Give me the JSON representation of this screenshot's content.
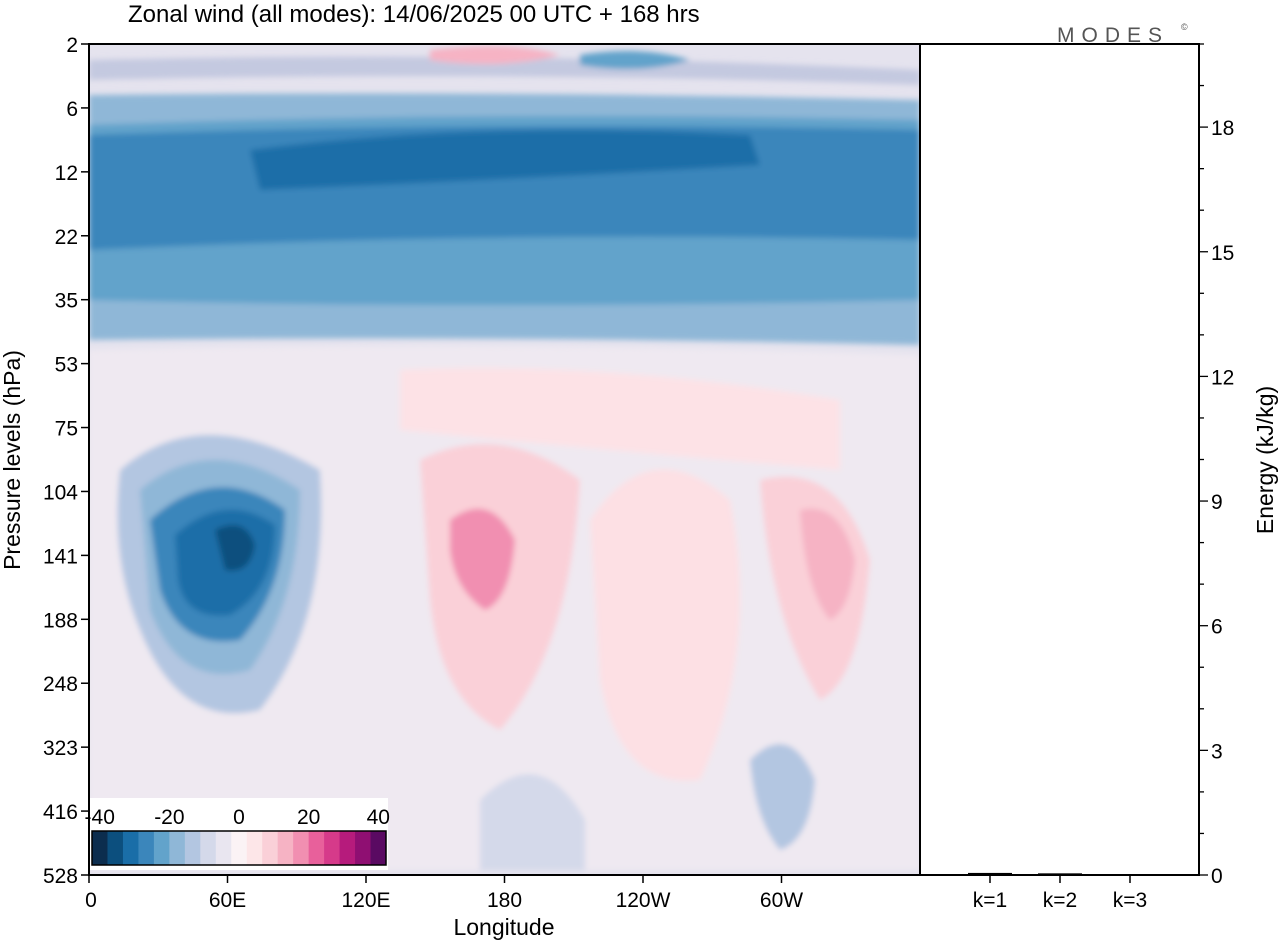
{
  "header": {
    "title": "Zonal wind (all modes):  14/06/2025  00 UTC  + 168 hrs",
    "logo": "MODES",
    "logo_mark": "©"
  },
  "colors": {
    "scale": [
      "#0c2d4e",
      "#0c4f7e",
      "#1a6ea8",
      "#3b86bb",
      "#62a3cb",
      "#8fb7d7",
      "#b3c6e1",
      "#d4d9ea",
      "#e9e6f0",
      "#fbf3f5",
      "#fde6e8",
      "#fad0d8",
      "#f6b3c4",
      "#f18fb1",
      "#e8609b",
      "#d63a8a",
      "#b61b7c",
      "#8f0f72",
      "#5a0a62"
    ],
    "background": "#f2eef4"
  },
  "chart_data": [
    {
      "type": "heatmap",
      "name": "zonal-wind-section",
      "xlabel": "Longitude",
      "ylabel": "Pressure levels (hPa)",
      "x_ticks": [
        {
          "lon": 0,
          "label": "0"
        },
        {
          "lon": 60,
          "label": "60E"
        },
        {
          "lon": 120,
          "label": "120E"
        },
        {
          "lon": 180,
          "label": "180"
        },
        {
          "lon": 240,
          "label": "120W"
        },
        {
          "lon": 300,
          "label": "60W"
        }
      ],
      "xlim": [
        0,
        360
      ],
      "y_levels": [
        "2",
        "6",
        "12",
        "22",
        "35",
        "53",
        "75",
        "104",
        "141",
        "188",
        "248",
        "323",
        "416",
        "528"
      ],
      "y_scale": "level-index",
      "colorbar": {
        "labels": [
          "-40",
          "-20",
          "0",
          "20",
          "40"
        ],
        "range": [
          -40,
          40
        ],
        "step": 5,
        "placement": "bottom-left"
      },
      "features": [
        {
          "desc": "strong easterly band",
          "lon": [
            0,
            360
          ],
          "level_index": [
            2,
            3
          ],
          "value": -25
        },
        {
          "desc": "easterly core",
          "lon": [
            100,
            280
          ],
          "level_index": [
            2,
            2.5
          ],
          "value": -30
        },
        {
          "desc": "upper easterlies",
          "lon": [
            0,
            360
          ],
          "level_index": [
            3,
            4.5
          ],
          "value": -15
        },
        {
          "desc": "weak westerlies aloft",
          "lon": [
            150,
            220
          ],
          "level_index": [
            0,
            0.6
          ],
          "value": 10
        },
        {
          "desc": "easterly jet",
          "lon": [
            20,
            110
          ],
          "level_index": [
            7,
            11
          ],
          "value": -30,
          "peak": -35
        },
        {
          "desc": "westerly maximum",
          "lon": [
            150,
            200
          ],
          "level_index": [
            6.5,
            10.5
          ],
          "value": 15
        },
        {
          "desc": "westerly maximum",
          "lon": [
            230,
            260
          ],
          "level_index": [
            7,
            11.5
          ],
          "value": 8
        },
        {
          "desc": "westerly maximum",
          "lon": [
            300,
            340
          ],
          "level_index": [
            7,
            10
          ],
          "value": 12
        }
      ]
    },
    {
      "type": "bar",
      "name": "energy-panel",
      "categories": [
        "k=1",
        "k=2",
        "k=3"
      ],
      "values": [
        0.05,
        0.04,
        0.02
      ],
      "ylabel": "Energy (kJ/kg)",
      "ylim": [
        0,
        20
      ],
      "y_ticks": [
        0,
        3,
        6,
        9,
        12,
        15,
        18
      ],
      "y_minor_step": 1
    }
  ]
}
